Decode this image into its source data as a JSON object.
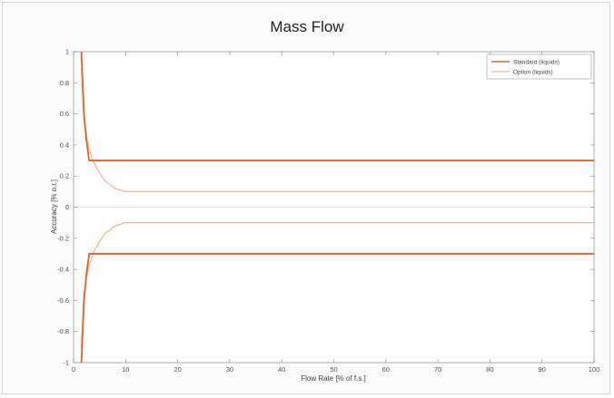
{
  "chart_data": {
    "type": "line",
    "title": "Mass Flow",
    "xlabel": "Flow Rate [% of f.s.]",
    "ylabel": "Accuracy [% o.r.]",
    "xlim": [
      0,
      100
    ],
    "ylim": [
      -1,
      1
    ],
    "x_ticks": [
      0,
      10,
      20,
      30,
      40,
      50,
      60,
      70,
      80,
      90,
      100
    ],
    "y_ticks": [
      1,
      0.8,
      0.6,
      0.4,
      0.2,
      0,
      -0.2,
      -0.4,
      -0.6,
      -0.8,
      -1
    ],
    "x_tick_labels": [
      "0",
      "10",
      "20",
      "30",
      "40",
      "50",
      "60",
      "70",
      "80",
      "90",
      "100"
    ],
    "y_tick_labels": [
      "1",
      "0.8",
      "0.6",
      "0.4",
      "0.2",
      "0",
      "-0.2",
      "-0.4",
      "-0.6",
      "-0.8",
      "-1"
    ],
    "grid": false,
    "legend_position": "top-right",
    "series": [
      {
        "name": "Standard (liquids)",
        "color": "#e8622a",
        "x": [
          1.5,
          2,
          2.5,
          3,
          4,
          100
        ],
        "upper": [
          1.0,
          0.6,
          0.42,
          0.3,
          0.3,
          0.3
        ],
        "lower": [
          -1.0,
          -0.6,
          -0.42,
          -0.3,
          -0.3,
          -0.3
        ]
      },
      {
        "name": "Option (liquids)",
        "color": "#f3b896",
        "x": [
          1.5,
          2,
          3,
          4,
          5,
          6,
          8,
          10,
          100
        ],
        "upper": [
          0.9,
          0.55,
          0.37,
          0.28,
          0.22,
          0.17,
          0.12,
          0.1,
          0.1
        ],
        "lower": [
          -0.9,
          -0.55,
          -0.37,
          -0.28,
          -0.22,
          -0.17,
          -0.12,
          -0.1,
          -0.1
        ]
      }
    ]
  }
}
